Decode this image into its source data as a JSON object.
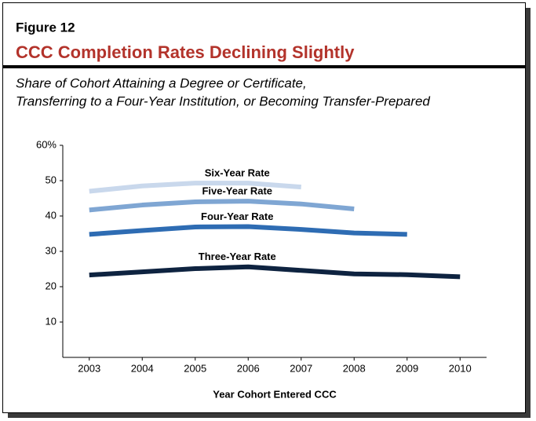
{
  "chart_data": {
    "type": "line",
    "figure_label": "Figure 12",
    "title": "CCC Completion Rates Declining Slightly",
    "subtitle": [
      "Share of Cohort Attaining a Degree or Certificate,",
      "Transferring to a Four-Year Institution, or Becoming Transfer-Prepared"
    ],
    "x_label": "Year Cohort Entered CCC",
    "x": [
      2003,
      2004,
      2005,
      2006,
      2007,
      2008,
      2009,
      2010
    ],
    "xlim": [
      2002.5,
      2010.5
    ],
    "xticks": [
      2003,
      2004,
      2005,
      2006,
      2007,
      2008,
      2009,
      2010
    ],
    "ylim": [
      0,
      60
    ],
    "yticks": [
      10,
      20,
      30,
      40,
      50,
      {
        "value": 60,
        "label": "60%"
      }
    ],
    "grid": false,
    "series": [
      {
        "name": "Six-Year Rate",
        "color": "#c9d8ec",
        "values": [
          47,
          48.5,
          49.3,
          49.3,
          48.2,
          null,
          null,
          null
        ]
      },
      {
        "name": "Five-Year Rate",
        "color": "#7fa6d3",
        "values": [
          41.7,
          43.1,
          44,
          44.2,
          43.4,
          42,
          null,
          null
        ]
      },
      {
        "name": "Four-Year Rate",
        "color": "#2e6cb3",
        "values": [
          34.8,
          35.9,
          36.9,
          37,
          36.2,
          35.2,
          34.8,
          null
        ]
      },
      {
        "name": "Three-Year Rate",
        "color": "#0e2340",
        "values": [
          23.3,
          24.2,
          25.1,
          25.6,
          24.6,
          23.6,
          23.4,
          22.8
        ]
      }
    ]
  }
}
